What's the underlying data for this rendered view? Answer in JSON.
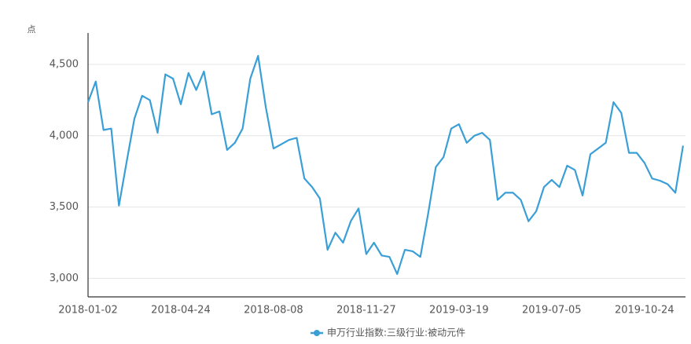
{
  "chart_data": {
    "type": "line",
    "y_axis_label": "点",
    "categories": [
      "2018-01-02",
      null,
      null,
      null,
      null,
      null,
      null,
      null,
      null,
      null,
      null,
      null,
      "2018-04-24",
      null,
      null,
      null,
      null,
      null,
      null,
      null,
      null,
      null,
      null,
      null,
      "2018-08-08",
      null,
      null,
      null,
      null,
      null,
      null,
      null,
      null,
      null,
      null,
      null,
      "2018-11-27",
      null,
      null,
      null,
      null,
      null,
      null,
      null,
      null,
      null,
      null,
      null,
      "2019-03-19",
      null,
      null,
      null,
      null,
      null,
      null,
      null,
      null,
      null,
      null,
      null,
      "2019-07-05",
      null,
      null,
      null,
      null,
      null,
      null,
      null,
      null,
      null,
      null,
      null,
      "2019-10-24",
      null,
      null,
      null,
      null,
      null
    ],
    "series": [
      {
        "name": "申万行业指数:三级行业:被动元件",
        "color": "#3a9fd6",
        "values": [
          4235,
          4380,
          4040,
          4050,
          3510,
          3820,
          4120,
          4280,
          4250,
          4020,
          4430,
          4400,
          4220,
          4440,
          4320,
          4450,
          4150,
          4170,
          3900,
          3950,
          4050,
          4400,
          4560,
          4200,
          3910,
          3940,
          3970,
          3985,
          3700,
          3640,
          3560,
          3200,
          3320,
          3250,
          3400,
          3490,
          3170,
          3250,
          3160,
          3150,
          3030,
          3200,
          3190,
          3150,
          3450,
          3780,
          3850,
          4050,
          4080,
          3950,
          4000,
          4020,
          3970,
          3550,
          3600,
          3600,
          3550,
          3400,
          3470,
          3640,
          3690,
          3640,
          3790,
          3760,
          3580,
          3870,
          3910,
          3950,
          4235,
          4160,
          3880,
          3880,
          3810,
          3700,
          3685,
          3660,
          3600,
          3930
        ]
      }
    ],
    "ylim": [
      2870,
      4720
    ],
    "yticks": [
      {
        "value": 3000,
        "label": "3,000"
      },
      {
        "value": 3500,
        "label": "3,500"
      },
      {
        "value": 4000,
        "label": "4,000"
      },
      {
        "value": 4500,
        "label": "4,500"
      }
    ],
    "grid": true
  }
}
